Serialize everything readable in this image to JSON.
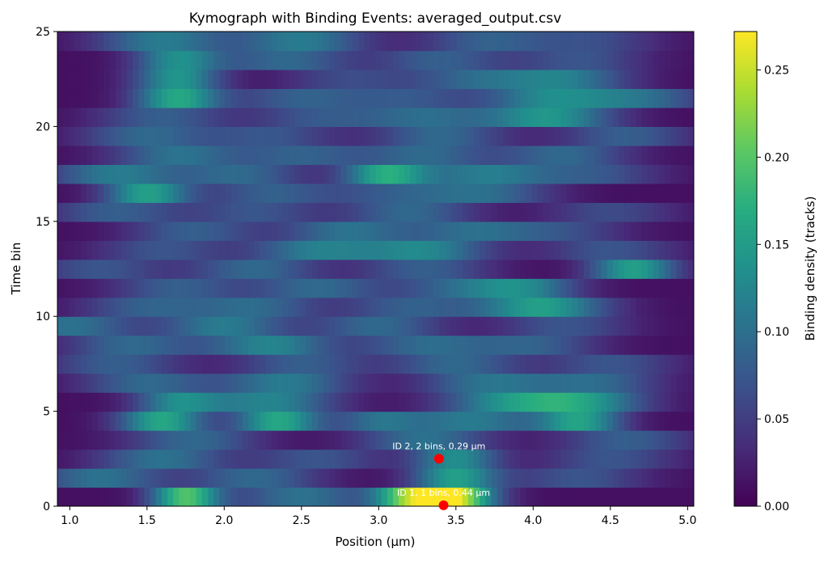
{
  "chart_data": {
    "type": "heatmap",
    "title": "Kymograph with Binding Events: averaged_output.csv",
    "xlabel": "Position (µm)",
    "ylabel": "Time bin",
    "xlim": [
      0.92,
      5.04
    ],
    "ylim": [
      0,
      25
    ],
    "x_ticks": [
      1.0,
      1.5,
      2.0,
      2.5,
      3.0,
      3.5,
      4.0,
      4.5,
      5.0
    ],
    "x_tick_labels": [
      "1.0",
      "1.5",
      "2.0",
      "2.5",
      "3.0",
      "3.5",
      "4.0",
      "4.5",
      "5.0"
    ],
    "y_ticks": [
      0,
      5,
      10,
      15,
      20,
      25
    ],
    "y_tick_labels": [
      "0",
      "5",
      "10",
      "15",
      "20",
      "25"
    ],
    "colorbar": {
      "label": "Binding density (tracks)",
      "colormap": "viridis",
      "range": [
        0,
        0.272
      ],
      "ticks": [
        0,
        0.05,
        0.1,
        0.15,
        0.2,
        0.25
      ],
      "tick_labels": [
        "0.00",
        "0.05",
        "0.10",
        "0.15",
        "0.20",
        "0.25"
      ]
    },
    "heatmap": {
      "rows": 25,
      "row_blobs": [
        [
          [
            1.75,
            0.16,
            0.18
          ],
          [
            3.45,
            0.2,
            0.27
          ],
          [
            3.15,
            0.15,
            0.12
          ],
          [
            2.5,
            0.3,
            0.09
          ]
        ],
        [
          [
            1.2,
            0.3,
            0.09
          ],
          [
            2.2,
            0.3,
            0.08
          ],
          [
            3.5,
            0.2,
            0.14
          ],
          [
            4.3,
            0.3,
            0.06
          ]
        ],
        [
          [
            1.6,
            0.3,
            0.09
          ],
          [
            3.5,
            0.2,
            0.12
          ],
          [
            2.6,
            0.3,
            0.06
          ],
          [
            4.5,
            0.3,
            0.06
          ]
        ],
        [
          [
            1.8,
            0.3,
            0.08
          ],
          [
            3.3,
            0.3,
            0.09
          ],
          [
            4.6,
            0.3,
            0.07
          ]
        ],
        [
          [
            1.6,
            0.2,
            0.15
          ],
          [
            2.35,
            0.2,
            0.15
          ],
          [
            3.6,
            0.3,
            0.1
          ],
          [
            4.3,
            0.2,
            0.14
          ],
          [
            3.0,
            0.2,
            0.08
          ]
        ],
        [
          [
            1.7,
            0.2,
            0.11
          ],
          [
            2.3,
            0.3,
            0.11
          ],
          [
            3.8,
            0.3,
            0.1
          ],
          [
            4.3,
            0.3,
            0.13
          ]
        ],
        [
          [
            1.5,
            0.3,
            0.08
          ],
          [
            2.4,
            0.3,
            0.1
          ],
          [
            3.7,
            0.3,
            0.09
          ],
          [
            4.4,
            0.3,
            0.08
          ]
        ],
        [
          [
            1.3,
            0.3,
            0.07
          ],
          [
            2.5,
            0.3,
            0.07
          ],
          [
            3.5,
            0.3,
            0.08
          ],
          [
            4.5,
            0.3,
            0.06
          ]
        ],
        [
          [
            1.4,
            0.3,
            0.08
          ],
          [
            2.3,
            0.3,
            0.11
          ],
          [
            3.3,
            0.3,
            0.08
          ],
          [
            4.0,
            0.3,
            0.07
          ]
        ],
        [
          [
            1.0,
            0.3,
            0.09
          ],
          [
            2.0,
            0.3,
            0.1
          ],
          [
            3.0,
            0.3,
            0.08
          ],
          [
            4.2,
            0.3,
            0.06
          ]
        ],
        [
          [
            1.5,
            0.3,
            0.07
          ],
          [
            2.2,
            0.3,
            0.08
          ],
          [
            3.2,
            0.3,
            0.07
          ],
          [
            4.05,
            0.3,
            0.14
          ]
        ],
        [
          [
            1.7,
            0.3,
            0.07
          ],
          [
            2.6,
            0.3,
            0.08
          ],
          [
            3.5,
            0.3,
            0.07
          ],
          [
            3.95,
            0.25,
            0.1
          ]
        ],
        [
          [
            1.2,
            0.3,
            0.06
          ],
          [
            2.2,
            0.3,
            0.08
          ],
          [
            3.3,
            0.3,
            0.07
          ],
          [
            4.65,
            0.2,
            0.14
          ]
        ],
        [
          [
            1.6,
            0.3,
            0.06
          ],
          [
            2.6,
            0.3,
            0.1
          ],
          [
            3.3,
            0.3,
            0.11
          ],
          [
            4.5,
            0.3,
            0.06
          ]
        ],
        [
          [
            1.8,
            0.3,
            0.07
          ],
          [
            2.8,
            0.3,
            0.09
          ],
          [
            3.6,
            0.3,
            0.08
          ],
          [
            4.2,
            0.3,
            0.05
          ]
        ],
        [
          [
            1.3,
            0.3,
            0.07
          ],
          [
            2.2,
            0.3,
            0.06
          ],
          [
            3.2,
            0.3,
            0.08
          ],
          [
            4.5,
            0.3,
            0.05
          ]
        ],
        [
          [
            1.5,
            0.2,
            0.14
          ],
          [
            2.3,
            0.3,
            0.07
          ],
          [
            3.1,
            0.3,
            0.06
          ],
          [
            3.7,
            0.3,
            0.08
          ]
        ],
        [
          [
            1.3,
            0.3,
            0.1
          ],
          [
            2.1,
            0.3,
            0.08
          ],
          [
            3.05,
            0.2,
            0.15
          ],
          [
            3.7,
            0.3,
            0.1
          ],
          [
            4.4,
            0.3,
            0.06
          ]
        ],
        [
          [
            1.7,
            0.3,
            0.09
          ],
          [
            2.5,
            0.3,
            0.07
          ],
          [
            3.3,
            0.3,
            0.08
          ],
          [
            4.2,
            0.3,
            0.08
          ]
        ],
        [
          [
            1.5,
            0.3,
            0.08
          ],
          [
            2.3,
            0.3,
            0.06
          ],
          [
            3.4,
            0.3,
            0.08
          ],
          [
            4.6,
            0.3,
            0.07
          ]
        ],
        [
          [
            1.6,
            0.3,
            0.07
          ],
          [
            2.6,
            0.3,
            0.06
          ],
          [
            3.3,
            0.3,
            0.08
          ],
          [
            4.1,
            0.3,
            0.13
          ]
        ],
        [
          [
            1.7,
            0.2,
            0.15
          ],
          [
            2.5,
            0.3,
            0.07
          ],
          [
            3.2,
            0.3,
            0.06
          ],
          [
            4.1,
            0.3,
            0.11
          ],
          [
            4.7,
            0.3,
            0.08
          ]
        ],
        [
          [
            1.7,
            0.2,
            0.13
          ],
          [
            2.8,
            0.3,
            0.05
          ],
          [
            3.6,
            0.3,
            0.07
          ],
          [
            4.2,
            0.3,
            0.1
          ]
        ],
        [
          [
            1.7,
            0.2,
            0.12
          ],
          [
            2.4,
            0.3,
            0.08
          ],
          [
            3.4,
            0.3,
            0.07
          ],
          [
            4.3,
            0.3,
            0.06
          ]
        ],
        [
          [
            1.6,
            0.3,
            0.1
          ],
          [
            2.5,
            0.3,
            0.1
          ],
          [
            3.7,
            0.3,
            0.07
          ],
          [
            4.4,
            0.3,
            0.05
          ]
        ]
      ]
    },
    "events": [
      {
        "id": 1,
        "x": 3.42,
        "y": 0.05,
        "label": "ID 1, 1 bins, 0.44 µm"
      },
      {
        "id": 2,
        "x": 3.39,
        "y": 2.5,
        "label": "ID 2, 2 bins, 0.29 µm"
      }
    ],
    "event_color": "#ff0000"
  }
}
